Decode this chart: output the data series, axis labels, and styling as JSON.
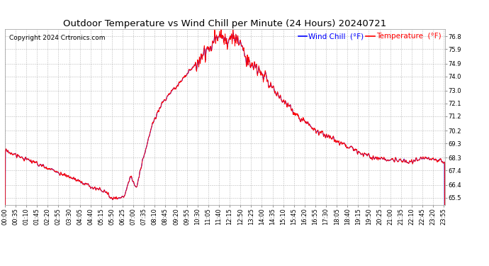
{
  "title": "Outdoor Temperature vs Wind Chill per Minute (24 Hours) 20240721",
  "copyright": "Copyright 2024 Crtronics.com",
  "legend_wind_chill": "Wind Chill  (°F)",
  "legend_temperature": "Temperature  (°F)",
  "wind_chill_color": "blue",
  "temperature_color": "red",
  "background_color": "#ffffff",
  "grid_color": "#aaaaaa",
  "yticks": [
    65.5,
    66.4,
    67.4,
    68.3,
    69.3,
    70.2,
    71.2,
    72.1,
    73.0,
    74.0,
    74.9,
    75.9,
    76.8
  ],
  "ylim": [
    65.0,
    77.3
  ],
  "title_fontsize": 9.5,
  "copyright_fontsize": 6.5,
  "legend_fontsize": 7.5,
  "tick_fontsize": 6,
  "xtick_labels": [
    "00:00",
    "00:35",
    "01:10",
    "01:45",
    "02:20",
    "02:55",
    "03:30",
    "04:05",
    "04:40",
    "05:15",
    "05:50",
    "06:25",
    "07:00",
    "07:35",
    "08:10",
    "08:45",
    "09:20",
    "09:55",
    "10:30",
    "11:05",
    "11:40",
    "12:15",
    "12:50",
    "13:25",
    "14:00",
    "14:35",
    "15:10",
    "15:45",
    "16:20",
    "16:55",
    "17:30",
    "18:05",
    "18:40",
    "19:15",
    "19:50",
    "20:25",
    "21:00",
    "21:35",
    "22:10",
    "22:45",
    "23:20",
    "23:55"
  ]
}
